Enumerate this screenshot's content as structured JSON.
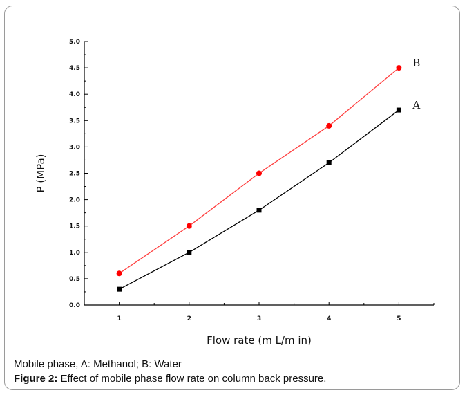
{
  "chart_data": {
    "type": "line",
    "xlabel": "Flow rate (m L/m in)",
    "ylabel": "P (MPa)",
    "xlim": [
      0.5,
      5.5
    ],
    "ylim": [
      0.0,
      5.0
    ],
    "x_ticks": [
      "1",
      "2",
      "3",
      "4",
      "5"
    ],
    "y_ticks": [
      "0.0",
      "0.5",
      "1.0",
      "1.5",
      "2.0",
      "2.5",
      "3.0",
      "3.5",
      "4.0",
      "4.5",
      "5.0"
    ],
    "x": [
      1,
      2,
      3,
      4,
      5
    ],
    "grid": false,
    "series": [
      {
        "name": "A",
        "values": [
          0.3,
          1.0,
          1.8,
          2.7,
          3.7
        ],
        "color": "#000000",
        "marker": "square"
      },
      {
        "name": "B",
        "values": [
          0.6,
          1.5,
          2.5,
          3.4,
          4.5
        ],
        "color": "#ff0000",
        "line_color": "#ff4040",
        "marker": "circle"
      }
    ]
  },
  "caption": {
    "line1": "Mobile phase, A: Methanol; B: Water",
    "label": "Figure 2:",
    "text": " Effect of mobile phase flow rate on column back pressure."
  }
}
